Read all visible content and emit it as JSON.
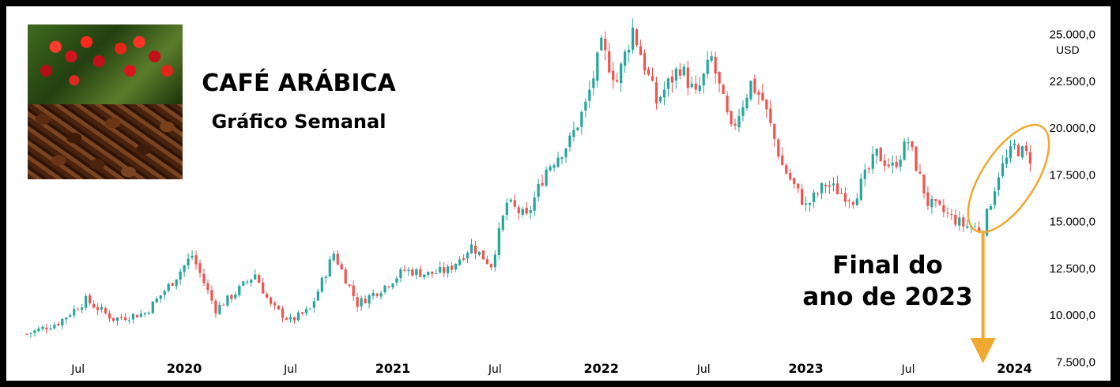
{
  "title": "CAFÉ ARÁBICA",
  "subtitle": "Gráfico Semanal",
  "annotation": {
    "line1": "Final do",
    "line2": "ano de 2023"
  },
  "colors": {
    "up": "#26a69a",
    "down": "#ef5350",
    "highlight": "#f0a830"
  },
  "chart_data": {
    "type": "candlestick",
    "timeframe": "weekly",
    "unit": "USD",
    "ylim": [
      6500,
      26500
    ],
    "y_ticks": [
      "25.000,0",
      "22.500,0",
      "20.000,0",
      "17.500,0",
      "15.000,0",
      "12.500,0",
      "10.000,0",
      "7.500,0"
    ],
    "y_tick_values": [
      25000,
      22500,
      20000,
      17500,
      15000,
      12500,
      10000,
      7500
    ],
    "x_ticks": [
      "Jul",
      "2020",
      "Jul",
      "2021",
      "Jul",
      "2022",
      "Jul",
      "2023",
      "Jul",
      "2024"
    ],
    "x_tick_weeks": [
      13,
      40,
      67,
      93,
      119,
      146,
      172,
      198,
      224,
      251
    ],
    "bold_x_ticks": [
      "2020",
      "2021",
      "2022",
      "2023",
      "2024"
    ],
    "price_path_weeks": [
      0,
      8,
      15,
      22,
      30,
      37,
      42,
      48,
      53,
      58,
      62,
      67,
      72,
      78,
      84,
      90,
      96,
      102,
      107,
      113,
      118,
      122,
      127,
      132,
      138,
      142,
      146,
      150,
      154,
      160,
      166,
      170,
      174,
      179,
      184,
      187,
      192,
      198,
      203,
      210,
      216,
      220,
      224,
      229,
      233,
      238,
      243,
      247,
      251,
      255
    ],
    "price_path_closes": [
      9000,
      9600,
      10800,
      9800,
      10100,
      11800,
      13200,
      10300,
      11200,
      12200,
      10500,
      9700,
      10300,
      13300,
      10600,
      11400,
      12400,
      12200,
      12400,
      13700,
      12700,
      16000,
      15200,
      17800,
      19300,
      21200,
      24300,
      22500,
      25300,
      21400,
      23300,
      21700,
      23700,
      19800,
      22400,
      21500,
      18000,
      15800,
      17000,
      16200,
      18600,
      17900,
      19300,
      16000,
      15500,
      14800,
      14600,
      17600,
      19000,
      18400
    ],
    "highlight_ellipse_weeks": [
      242,
      257
    ],
    "arrow_week": 243
  }
}
